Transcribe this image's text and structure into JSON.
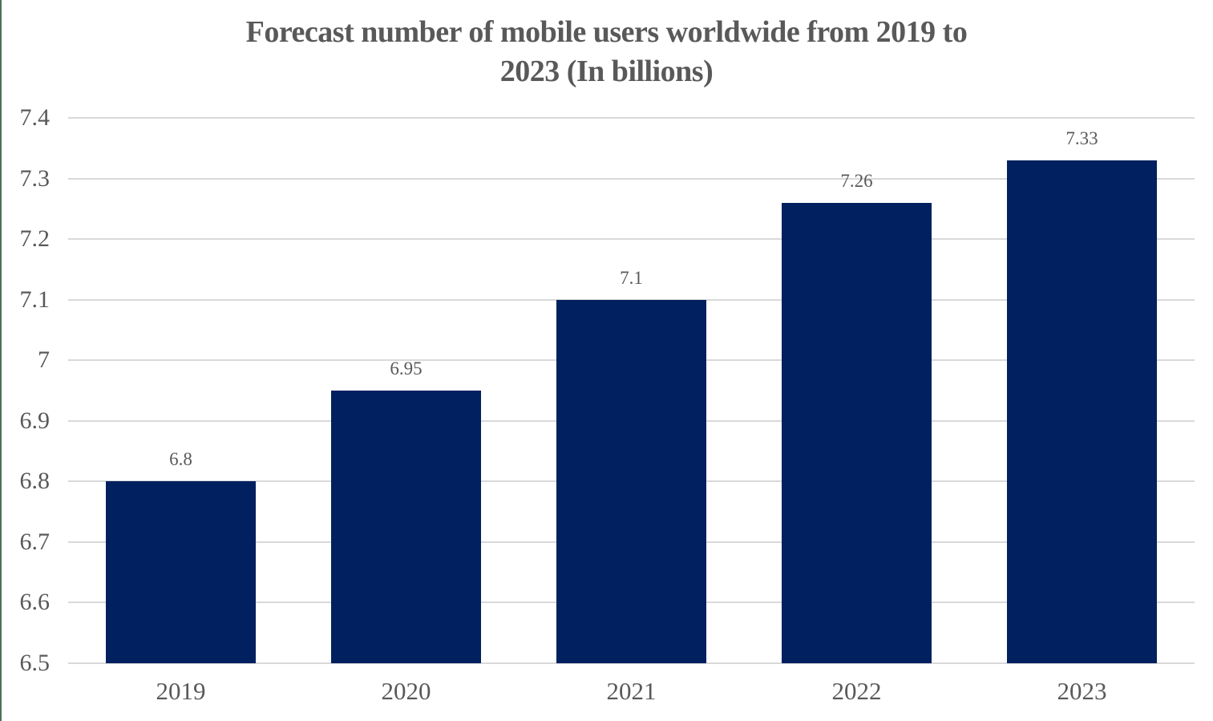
{
  "title_lines": [
    "Forecast number of mobile users worldwide from 2019 to",
    "2023 (In billions)"
  ],
  "chart_data": {
    "type": "bar",
    "title": "Forecast number of mobile users worldwide from 2019 to 2023 (In billions)",
    "categories": [
      "2019",
      "2020",
      "2021",
      "2022",
      "2023"
    ],
    "values": [
      6.8,
      6.95,
      7.1,
      7.26,
      7.33
    ],
    "data_labels": [
      "6.8",
      "6.95",
      "7.1",
      "7.26",
      "7.33"
    ],
    "xlabel": "",
    "ylabel": "",
    "ylim": [
      6.5,
      7.4
    ],
    "ytick_step": 0.1,
    "ytick_labels": [
      "6.5",
      "6.6",
      "6.7",
      "6.8",
      "6.9",
      "7",
      "7.1",
      "7.2",
      "7.3",
      "7.4"
    ],
    "grid": "horizontal",
    "legend": "none",
    "colors": {
      "bar": "#002060",
      "gridline": "#D9D9D9",
      "text": "#595959",
      "accent_border": "#4A7356",
      "background": "#FFFFFF"
    }
  }
}
